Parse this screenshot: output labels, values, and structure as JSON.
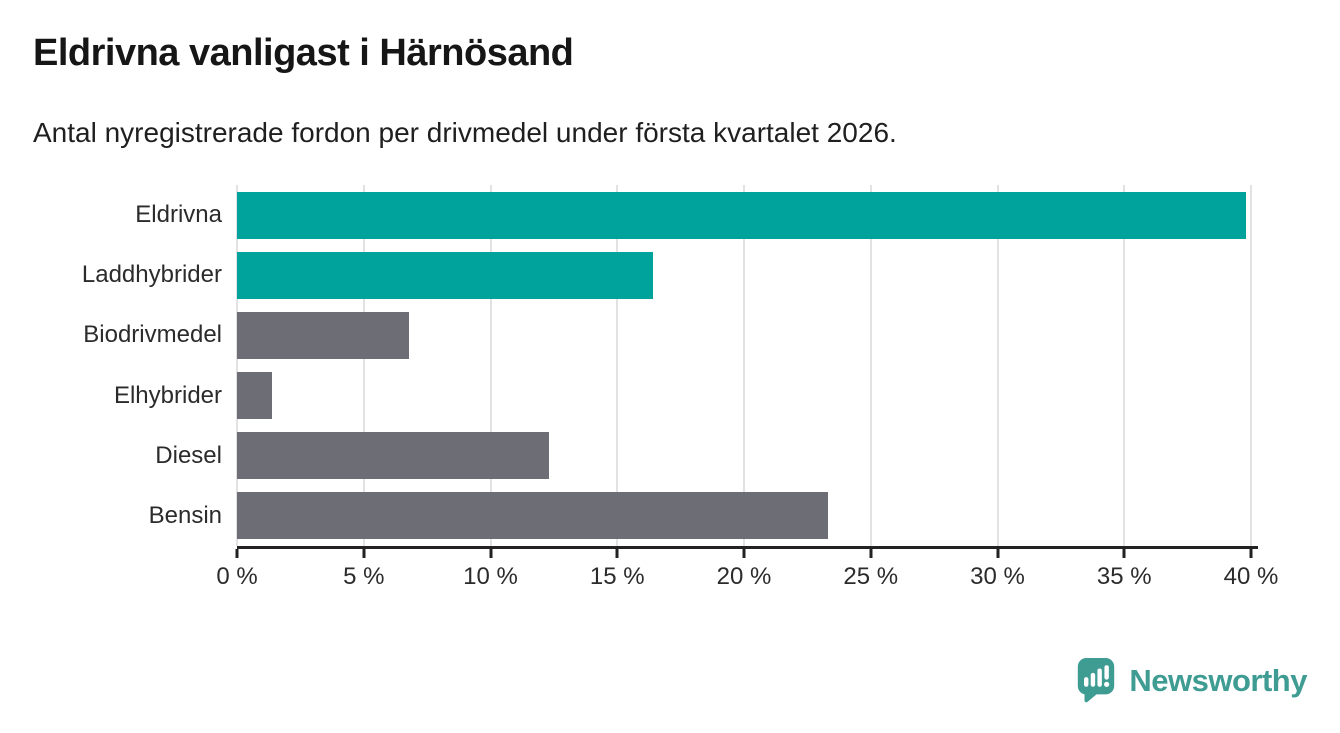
{
  "header": {
    "title": "Eldrivna vanligast i Härnösand",
    "subtitle": "Antal nyregistrerade fordon per drivmedel under första kvartalet 2026."
  },
  "chart_data": {
    "type": "bar",
    "orientation": "horizontal",
    "title": "Eldrivna vanligast i Härnösand",
    "subtitle": "Antal nyregistrerade fordon per drivmedel under första kvartalet 2026.",
    "categories": [
      "Eldrivna",
      "Laddhybrider",
      "Biodrivmedel",
      "Elhybrider",
      "Diesel",
      "Bensin"
    ],
    "values": [
      39.8,
      16.4,
      6.8,
      1.4,
      12.3,
      23.3
    ],
    "unit": "%",
    "bar_colors": [
      "#00a39b",
      "#00a39b",
      "#6d6d75",
      "#6d6d75",
      "#6d6d75",
      "#6d6d75"
    ],
    "xlabel": "",
    "ylabel": "",
    "xlim": [
      0,
      40
    ],
    "x_ticks": [
      0,
      5,
      10,
      15,
      20,
      25,
      30,
      35,
      40
    ],
    "x_tick_labels": [
      "0 %",
      "5 %",
      "10 %",
      "15 %",
      "20 %",
      "25 %",
      "30 %",
      "35 %",
      "40 %"
    ],
    "grid": true,
    "legend": false
  },
  "branding": {
    "logo_text": "Newsworthy",
    "logo_color": "#3f9c93",
    "logo_icon": "chart-speech-bubble"
  },
  "colors": {
    "accent_teal": "#00a39b",
    "neutral_gray": "#6d6d75",
    "gridline": "#e2e2e2",
    "axis": "#222222",
    "title_text": "#161616",
    "label_text": "#2b2b2b"
  }
}
